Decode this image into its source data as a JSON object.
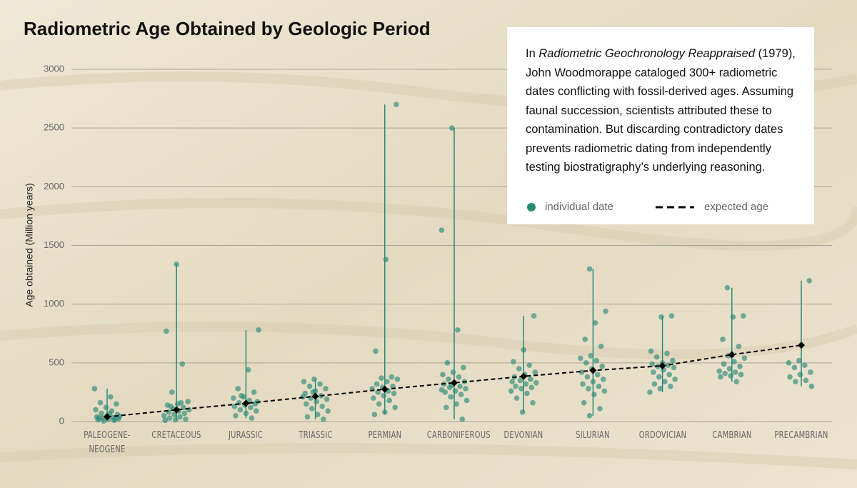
{
  "chart_data": {
    "type": "strip",
    "title": "Radiometric Age Obtained by Geologic Period",
    "y_label": "Age obtained (Million years)",
    "ylim": [
      0,
      3000
    ],
    "yticks": [
      0,
      500,
      1000,
      1500,
      2000,
      2500,
      3000
    ],
    "grid": true,
    "categories": [
      "PALEOGENE-NEOGENE",
      "CRETACEOUS",
      "JURASSIC",
      "TRIASSIC",
      "PERMIAN",
      "CARBONIFEROUS",
      "DEVONIAN",
      "SILURIAN",
      "ORDOVICIAN",
      "CAMBRIAN",
      "PRECAMBRIAN"
    ],
    "series": [
      {
        "name": "individual date",
        "color": "#2a8a76",
        "values": [
          [
            280,
            210,
            160,
            150,
            120,
            100,
            90,
            70,
            60,
            50,
            40,
            35,
            30,
            25,
            20,
            15,
            10,
            5,
            45,
            65,
            30,
            20
          ],
          [
            1340,
            770,
            490,
            250,
            170,
            150,
            140,
            120,
            110,
            100,
            90,
            80,
            70,
            60,
            50,
            40,
            30,
            20,
            15,
            10,
            160,
            130
          ],
          [
            780,
            440,
            280,
            250,
            210,
            200,
            180,
            160,
            150,
            140,
            130,
            120,
            100,
            90,
            70,
            50,
            30,
            220,
            170
          ],
          [
            360,
            340,
            320,
            300,
            280,
            260,
            240,
            220,
            200,
            190,
            170,
            150,
            130,
            110,
            90,
            60,
            40,
            20,
            250,
            210
          ],
          [
            2700,
            1380,
            600,
            380,
            370,
            360,
            340,
            320,
            300,
            290,
            280,
            260,
            250,
            240,
            220,
            200,
            180,
            150,
            120,
            80,
            60
          ],
          [
            2500,
            1630,
            780,
            500,
            460,
            420,
            400,
            380,
            360,
            340,
            330,
            320,
            300,
            290,
            280,
            260,
            250,
            230,
            210,
            180,
            150,
            120,
            20,
            310,
            270
          ],
          [
            900,
            610,
            510,
            480,
            450,
            420,
            400,
            380,
            360,
            350,
            330,
            320,
            300,
            290,
            280,
            260,
            240,
            200,
            160,
            80,
            340
          ],
          [
            1300,
            940,
            840,
            700,
            640,
            560,
            540,
            520,
            500,
            470,
            450,
            420,
            400,
            380,
            360,
            340,
            320,
            300,
            280,
            260,
            230,
            160,
            110,
            50
          ],
          [
            900,
            890,
            600,
            580,
            550,
            520,
            500,
            490,
            480,
            470,
            460,
            440,
            420,
            400,
            380,
            360,
            340,
            320,
            300,
            280,
            250
          ],
          [
            1140,
            900,
            890,
            700,
            640,
            560,
            540,
            510,
            490,
            470,
            450,
            430,
            420,
            410,
            400,
            390,
            380,
            340
          ],
          [
            1200,
            520,
            500,
            480,
            460,
            420,
            400,
            380,
            350,
            340,
            300
          ]
        ]
      },
      {
        "name": "expected age",
        "color": "#000000",
        "style": "dashed",
        "values": [
          40,
          100,
          155,
          215,
          275,
          330,
          385,
          435,
          475,
          570,
          650
        ]
      }
    ],
    "annotation": {
      "parts": [
        "In ",
        "Radiometric Geochronology Reappraised",
        " (1979), John Woodmorappe cataloged 300+ radiometric dates conflicting with fossil-derived ages. Assuming faunal succession, scientists attributed these to contamination. But discarding contradictory dates prevents radiometric dating from independently testing biostratigraphy’s underlying reasoning."
      ]
    }
  }
}
